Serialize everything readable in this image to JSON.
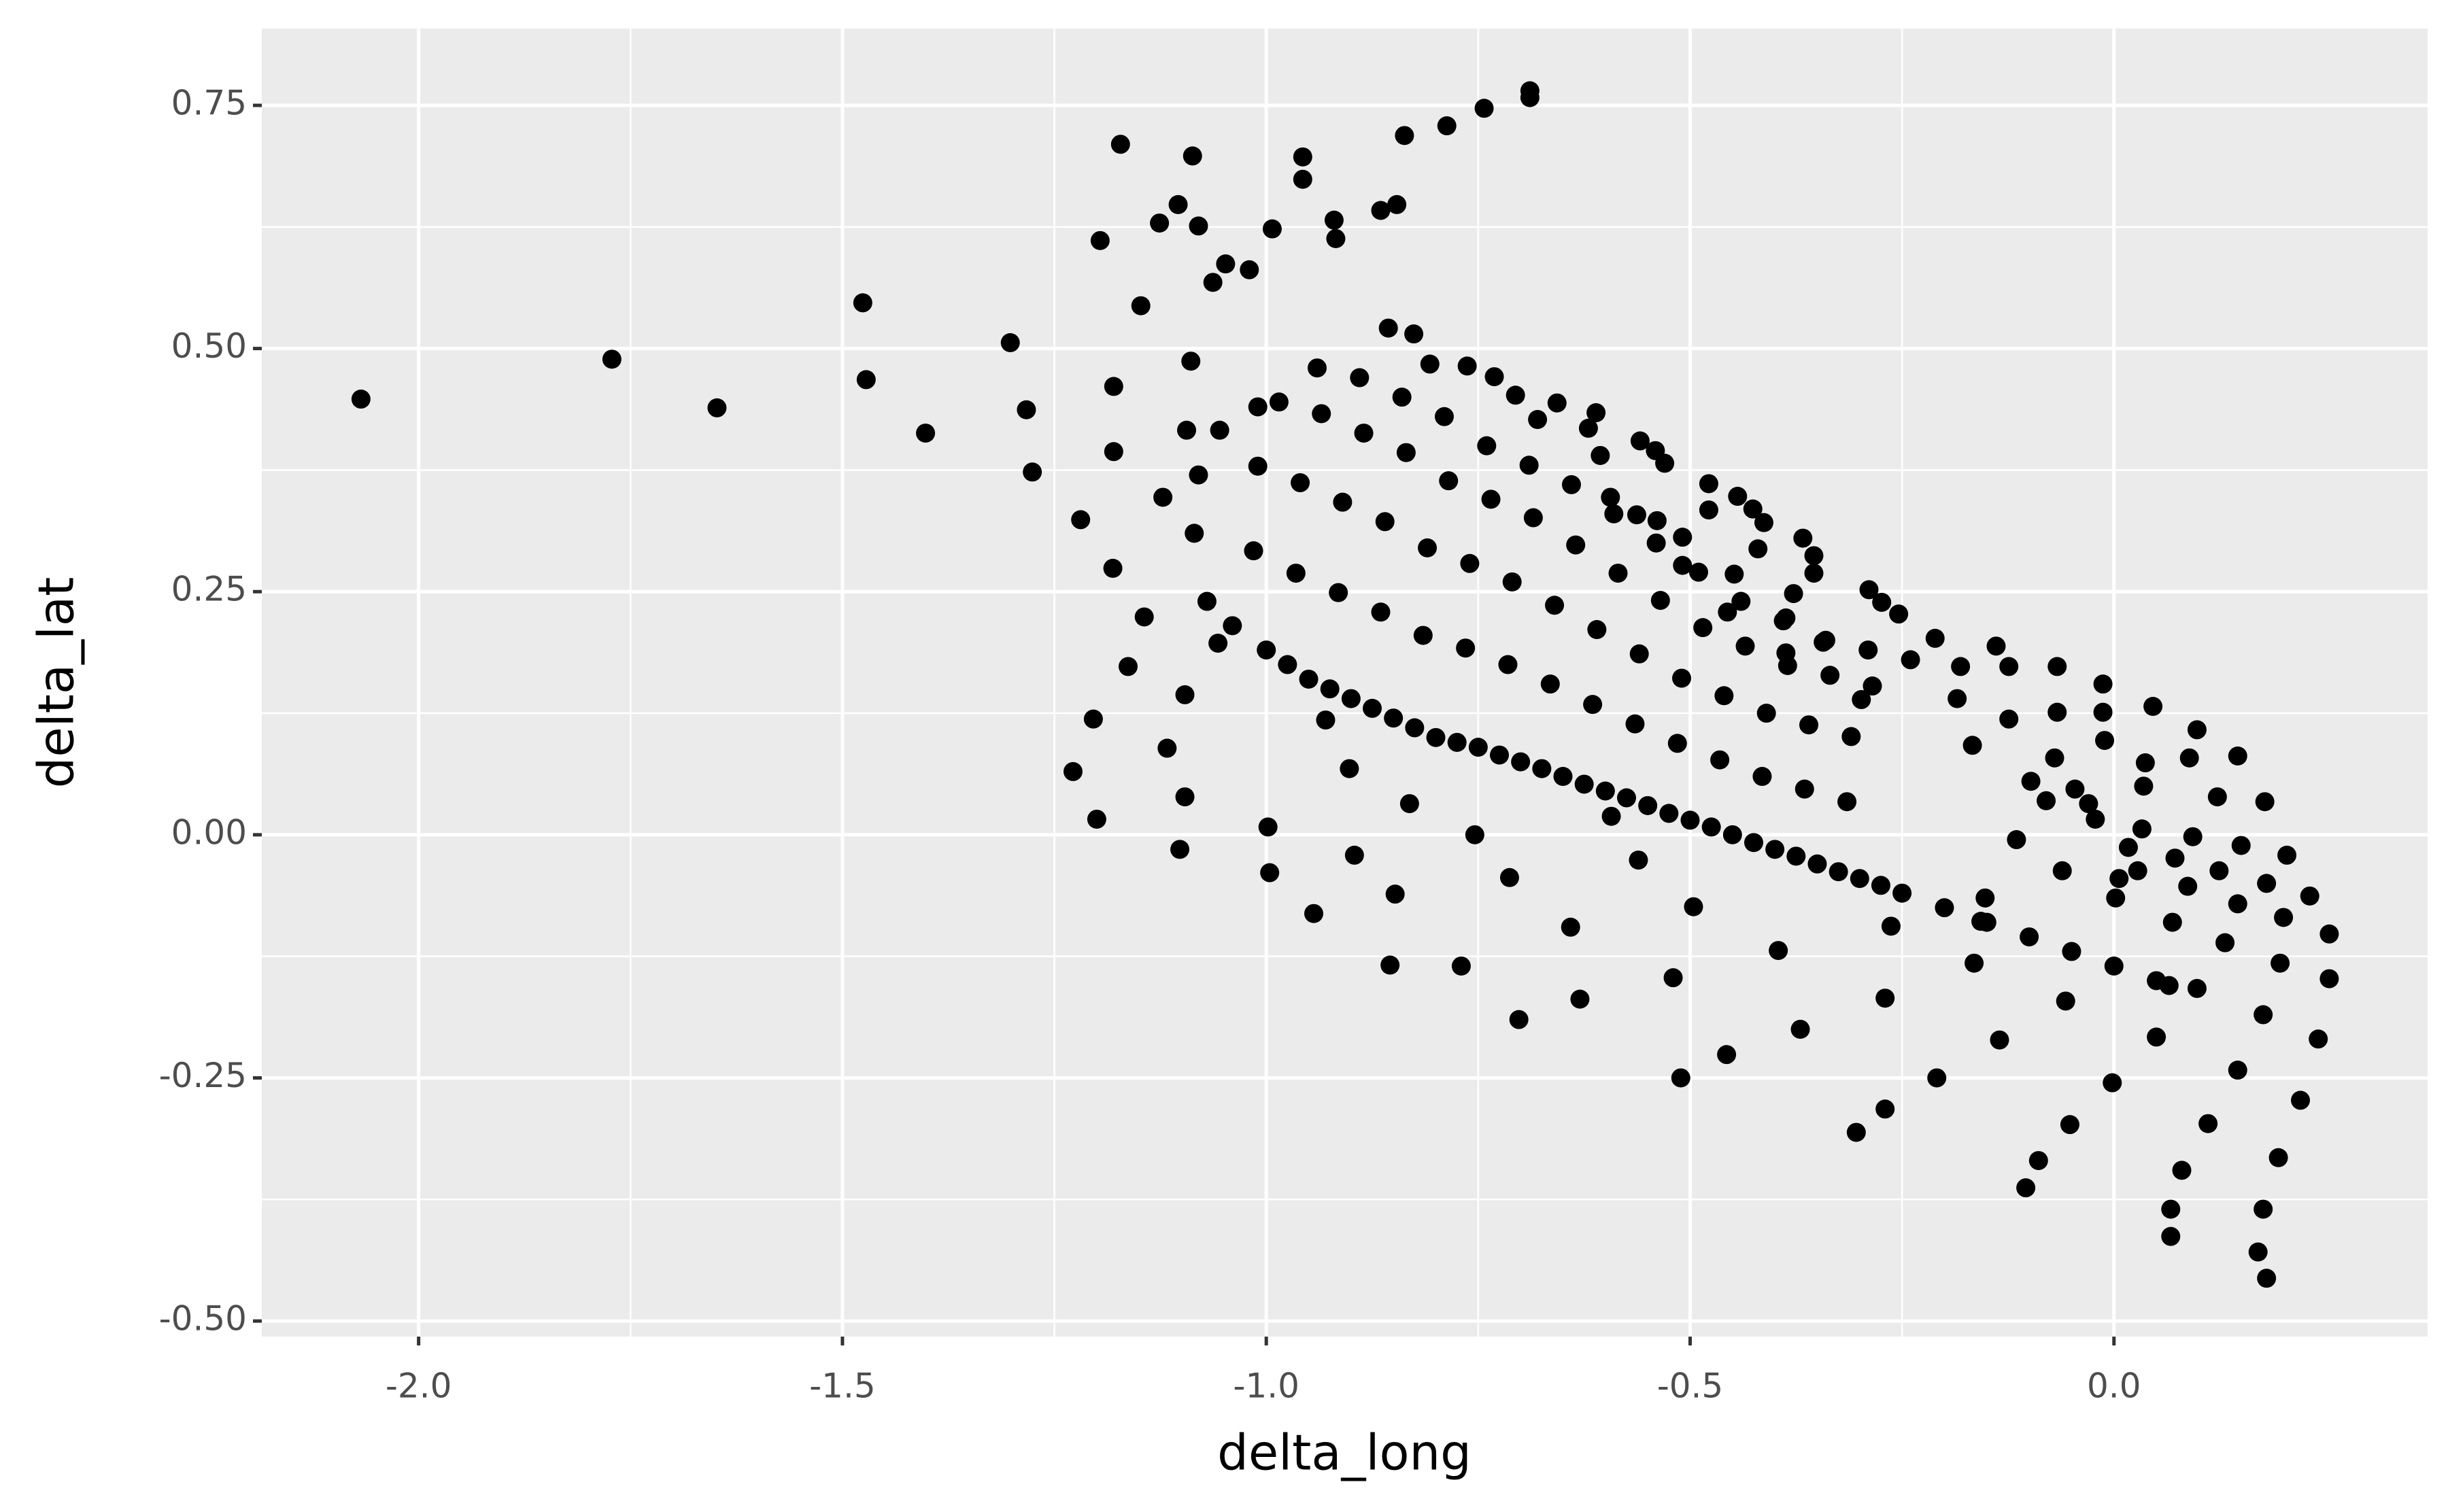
{
  "chart_data": {
    "type": "scatter",
    "x_label": "delta_long",
    "y_label": "delta_lat",
    "color": "#000000",
    "grid": true,
    "xlim": [
      -2.185,
      0.37
    ],
    "ylim": [
      -0.516,
      0.829
    ],
    "xticks": [
      {
        "value": -2.0,
        "label": "-2.0"
      },
      -1.5,
      {
        "value": -1.0,
        "label": "-1.0"
      },
      -0.5,
      {
        "value": 0.0,
        "label": "0.0"
      }
    ],
    "yticks": [
      {
        "value": -0.5,
        "label": "-0.50"
      },
      -0.25,
      {
        "value": 0.0,
        "label": "0.00"
      },
      0.25,
      {
        "value": 0.5,
        "label": "0.50"
      },
      0.75
    ],
    "x": [
      -2.068,
      -1.772,
      -1.648,
      -1.476,
      -1.472,
      -1.402,
      -1.302,
      -1.283,
      -1.276,
      -1.219,
      -1.228,
      -1.204,
      -1.2,
      -1.196,
      -1.172,
      -1.18,
      -1.18,
      -1.181,
      -1.163,
      -1.148,
      -1.144,
      -1.126,
      -1.122,
      -1.117,
      -1.104,
      -1.102,
      -1.096,
      -1.096,
      -1.094,
      -1.089,
      -1.087,
      -1.08,
      -1.063,
      -1.057,
      -1.048,
      -1.02,
      -0.998,
      -0.996,
      -0.993,
      -0.957,
      -0.957,
      -0.944,
      -0.93,
      -0.92,
      -0.918,
      -0.902,
      -0.896,
      -0.865,
      -0.846,
      -0.848,
      -0.854,
      -0.837,
      -0.831,
      -0.787,
      -0.77,
      -0.754,
      -0.743,
      -0.713,
      -0.702,
      -0.689,
      -0.689,
      -0.641,
      -0.63,
      -0.593,
      -0.561,
      -0.52,
      -0.511,
      -0.496,
      -0.457,
      -0.396,
      -0.37,
      -0.304,
      -0.27,
      -0.27,
      -0.209,
      -0.165,
      -0.135,
      -0.104,
      -0.089,
      -0.057,
      -0.052,
      -0.002,
      0.05,
      0.08,
      0.067,
      0.067,
      0.098,
      0.111,
      0.131,
      0.146,
      0.17,
      0.18,
      0.176,
      0.176,
      0.194,
      0.196,
      0.22,
      0.241,
      0.254,
      0.254,
      0.231,
      0.2,
      0.204,
      0.178,
      0.18,
      0.146,
      0.146,
      0.15,
      0.122,
      0.124,
      0.098,
      0.093,
      0.089,
      0.087,
      0.072,
      0.069,
      0.046,
      0.037,
      0.035,
      0.033,
      0.028,
      0.006,
      -0.013,
      -0.013,
      -0.011,
      0.002,
      0.017,
      -0.022,
      -0.03,
      -0.046,
      -0.061,
      -0.067,
      -0.067,
      -0.07,
      -0.08,
      -0.098,
      -0.115,
      -0.124,
      -0.124,
      -0.139,
      -0.152,
      -0.157,
      -0.167,
      -0.185,
      -0.181,
      -0.211,
      -0.263,
      -0.274,
      -0.289,
      -0.254,
      -0.298,
      -0.343,
      -0.354,
      -0.367,
      -0.354,
      -0.378,
      -0.387,
      -0.387,
      -0.42,
      -0.413,
      -0.426,
      -0.444,
      -0.448,
      -0.456,
      -0.478,
      -0.478,
      -0.509,
      -0.509,
      -0.53,
      -0.541,
      -0.539,
      -0.559,
      -0.563,
      -0.594,
      -0.606,
      -0.62,
      -0.611,
      -0.657,
      -0.68,
      -0.706,
      -0.731,
      -0.763,
      -0.807,
      -0.826,
      -0.856,
      -1.07,
      -1.085,
      -1.08,
      -1.055,
      -1.01,
      -1.0,
      -1.015,
      -1.01,
      -0.985,
      -0.94,
      -0.95,
      -0.965,
      -0.96,
      -0.935,
      -0.89,
      -0.9,
      -0.915,
      -0.91,
      -0.885,
      -0.84,
      -0.85,
      -0.865,
      -0.86,
      -0.835,
      -0.79,
      -0.8,
      -0.815,
      -0.81,
      -0.785,
      -0.74,
      -0.75,
      -0.765,
      -0.76,
      -0.735,
      -0.69,
      -0.7,
      -0.715,
      -0.71,
      -0.685,
      -0.64,
      -0.65,
      -0.665,
      -0.66,
      -0.635,
      -0.59,
      -0.6,
      -0.615,
      -0.61,
      -0.585,
      -0.54,
      -0.55,
      -0.565,
      -0.56,
      -0.535,
      -0.49,
      -0.5,
      -0.515,
      -0.51,
      -0.485,
      -0.44,
      -0.45,
      -0.465,
      -0.46,
      -0.435,
      -0.39,
      -0.4,
      -0.415,
      -0.41,
      -0.385,
      -0.34,
      -0.35,
      -0.365,
      -0.36,
      -0.335,
      -0.29,
      -0.3,
      -0.315,
      -0.31,
      -0.285,
      -0.24,
      -0.25,
      -0.2,
      -0.15,
      -0.1,
      -0.05,
      0.0,
      0.05,
      0.065,
      -1.04,
      -0.975,
      -0.925,
      -0.875,
      -0.825,
      -0.775,
      -0.725,
      -0.675,
      -0.625,
      -0.575,
      -0.525,
      -0.475,
      -0.425,
      -0.375,
      -0.325,
      -0.275
    ],
    "y": [
      0.448,
      0.489,
      0.439,
      0.547,
      0.468,
      0.413,
      0.506,
      0.437,
      0.373,
      0.324,
      0.065,
      0.119,
      0.016,
      0.611,
      0.71,
      0.461,
      0.394,
      0.274,
      0.173,
      0.544,
      0.224,
      0.629,
      0.347,
      0.089,
      0.648,
      -0.015,
      0.039,
      0.144,
      0.416,
      0.487,
      0.698,
      0.626,
      0.568,
      0.197,
      0.587,
      0.581,
      0.008,
      -0.039,
      0.623,
      0.697,
      0.674,
      -0.081,
      0.118,
      0.632,
      0.613,
      0.068,
      -0.021,
      0.642,
      0.648,
      -0.061,
      -0.134,
      0.719,
      0.032,
      0.729,
      -0.135,
      0.0,
      0.747,
      -0.044,
      -0.19,
      0.765,
      0.758,
      -0.095,
      -0.169,
      0.019,
      -0.026,
      -0.147,
      -0.25,
      -0.074,
      -0.226,
      -0.119,
      -0.2,
      -0.306,
      -0.282,
      -0.168,
      -0.25,
      -0.132,
      -0.211,
      -0.363,
      -0.335,
      -0.171,
      -0.298,
      -0.255,
      -0.208,
      -0.345,
      -0.385,
      -0.413,
      -0.158,
      -0.297,
      -0.111,
      -0.242,
      -0.429,
      -0.456,
      -0.385,
      -0.185,
      -0.332,
      -0.132,
      -0.273,
      -0.21,
      -0.148,
      -0.102,
      -0.063,
      -0.085,
      -0.021,
      0.034,
      -0.05,
      0.081,
      -0.071,
      -0.011,
      0.039,
      -0.037,
      0.108,
      -0.002,
      0.079,
      -0.053,
      -0.024,
      -0.09,
      0.132,
      0.074,
      0.05,
      0.006,
      -0.037,
      -0.045,
      0.155,
      0.126,
      0.097,
      -0.065,
      -0.013,
      0.016,
      0.032,
      0.047,
      -0.037,
      0.173,
      0.126,
      0.079,
      0.035,
      0.055,
      -0.005,
      0.173,
      0.119,
      0.194,
      -0.065,
      -0.089,
      0.092,
      0.14,
      0.173,
      0.202,
      -0.094,
      0.239,
      0.252,
      0.227,
      0.139,
      0.198,
      0.287,
      0.305,
      0.269,
      0.248,
      0.187,
      0.223,
      0.294,
      0.321,
      0.335,
      0.348,
      0.268,
      0.229,
      0.334,
      0.361,
      0.306,
      0.277,
      0.382,
      0.395,
      0.323,
      0.405,
      0.329,
      0.347,
      0.39,
      0.418,
      0.434,
      0.444,
      0.427,
      0.452,
      0.471,
      0.482,
      0.484,
      0.515,
      0.521,
      0.24,
      0.31,
      0.37,
      0.416,
      0.44,
      0.19,
      0.292,
      0.379,
      0.445,
      0.48,
      0.16,
      0.269,
      0.362,
      0.433,
      0.47,
      0.14,
      0.249,
      0.342,
      0.413,
      0.45,
      0.12,
      0.229,
      0.322,
      0.393,
      0.43,
      0.1,
      0.205,
      0.295,
      0.364,
      0.4,
      0.09,
      0.192,
      0.279,
      0.345,
      0.38,
      0.075,
      0.175,
      0.26,
      0.326,
      0.36,
      0.06,
      0.155,
      0.236,
      0.298,
      0.33,
      0.045,
      0.134,
      0.211,
      0.269,
      0.3,
      0.03,
      0.114,
      0.186,
      0.241,
      0.27,
      0.015,
      0.094,
      0.161,
      0.213,
      0.24,
      0.0,
      0.077,
      0.143,
      0.194,
      0.22,
      -0.015,
      0.06,
      0.125,
      0.174,
      0.2,
      -0.03,
      0.047,
      0.113,
      0.164,
      0.19,
      -0.045,
      0.034,
      0.101,
      0.153,
      0.18,
      -0.06,
      -0.075,
      -0.09,
      -0.105,
      -0.12,
      -0.135,
      -0.15,
      -0.155,
      0.215,
      0.175,
      0.15,
      0.13,
      0.11,
      0.095,
      0.082,
      0.068,
      0.052,
      0.038,
      0.022,
      0.008,
      -0.008,
      -0.022,
      -0.038,
      -0.052
    ]
  }
}
